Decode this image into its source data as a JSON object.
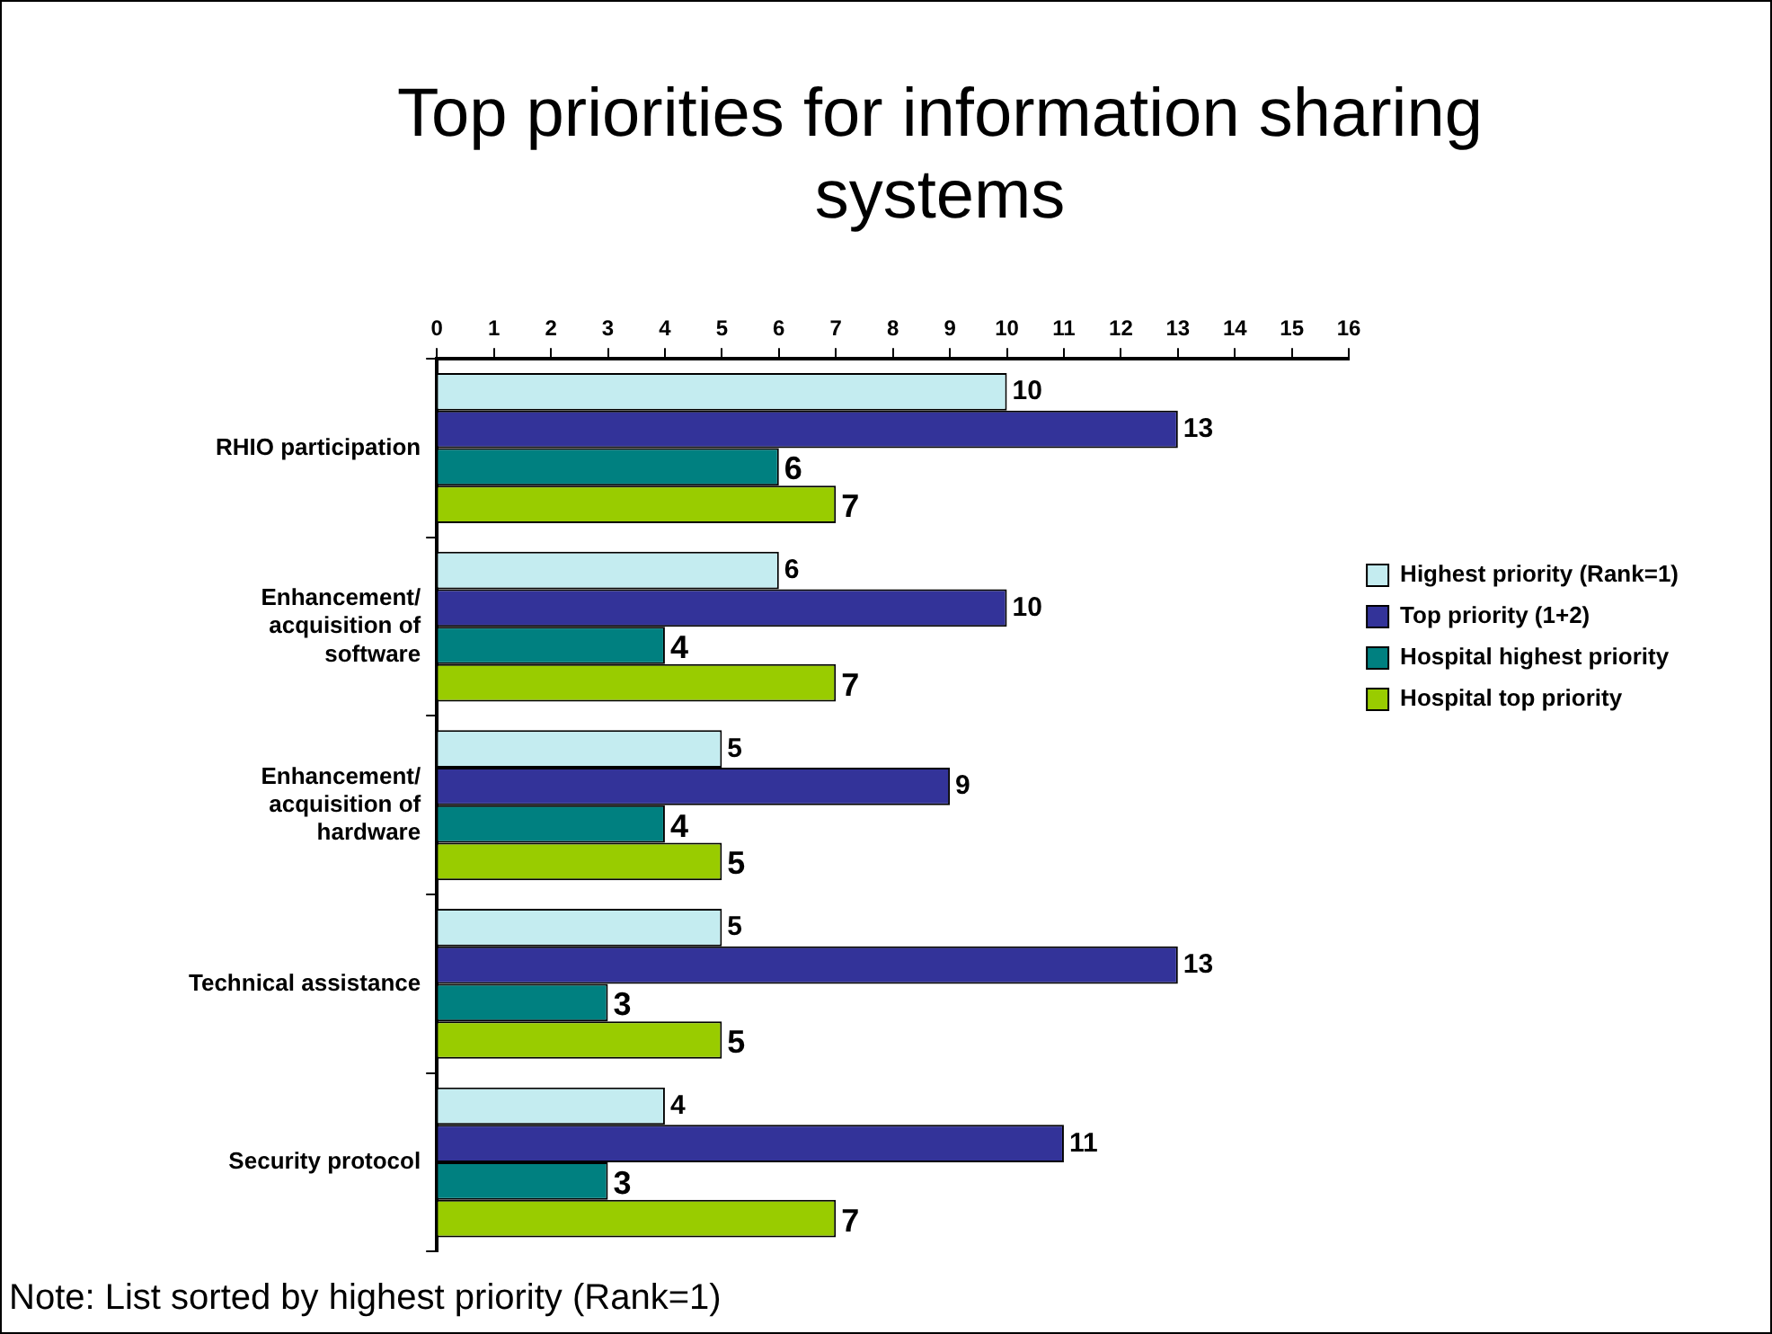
{
  "chart_data": {
    "type": "bar",
    "orientation": "horizontal",
    "title": "Top priorities for information sharing systems",
    "categories": [
      "RHIO participation",
      "Enhancement/ acquisition of software",
      "Enhancement/ acquisition of hardware",
      "Technical assistance",
      "Security protocol"
    ],
    "series": [
      {
        "name": "Highest priority (Rank=1)",
        "color": "#c4ecf0",
        "values": [
          10,
          6,
          5,
          5,
          4
        ]
      },
      {
        "name": "Top priority (1+2)",
        "color": "#333399",
        "values": [
          13,
          10,
          9,
          13,
          11
        ]
      },
      {
        "name": "Hospital highest priority",
        "color": "#008080",
        "values": [
          6,
          4,
          4,
          3,
          3
        ]
      },
      {
        "name": "Hospital top priority",
        "color": "#99cc00",
        "values": [
          7,
          7,
          5,
          5,
          7
        ]
      }
    ],
    "xlim": [
      0,
      16
    ],
    "xticks": [
      0,
      1,
      2,
      3,
      4,
      5,
      6,
      7,
      8,
      9,
      10,
      11,
      12,
      13,
      14,
      15,
      16
    ],
    "grid": false,
    "legend": "right",
    "data_labels": true,
    "annotations": [
      "Note: List sorted by highest priority (Rank=1)"
    ]
  }
}
